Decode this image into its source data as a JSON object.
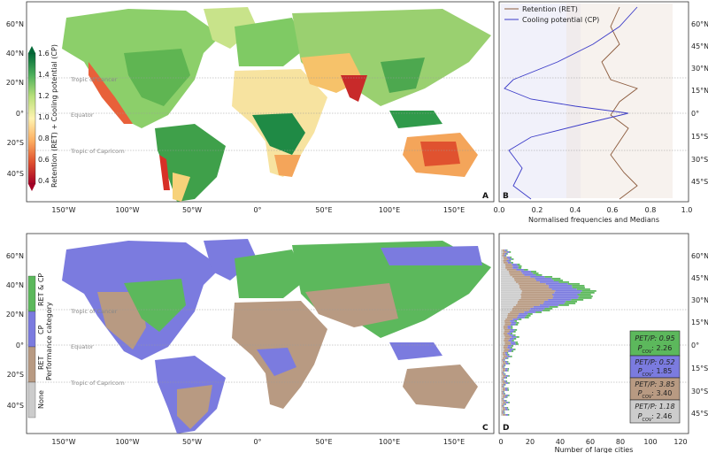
{
  "panels": {
    "a": {
      "letter": "A"
    },
    "b": {
      "letter": "B"
    },
    "c": {
      "letter": "C"
    },
    "d": {
      "letter": "D"
    }
  },
  "lat_ticks_left": [
    "60°N",
    "40°N",
    "20°N",
    "0°",
    "20°S",
    "40°S"
  ],
  "lon_ticks": [
    "150°W",
    "100°W",
    "50°W",
    "0°",
    "50°E",
    "100°E",
    "150°E"
  ],
  "lat_ticks_right": [
    "60°N",
    "45°N",
    "30°N",
    "15°N",
    "0°",
    "15°S",
    "30°S",
    "45°S"
  ],
  "ref_lines": {
    "cancer": "Tropic of Cancer",
    "equator": "Equator",
    "capricorn": "Tropic of Capricorn"
  },
  "colorbar_a": {
    "label": "Retention (RET) + Cooling potential (CP)",
    "ticks": [
      "1.6",
      "1.4",
      "1.2",
      "1.0",
      "0.8",
      "0.6",
      "0.4"
    ]
  },
  "panel_b": {
    "legend": [
      "Retention (RET)",
      "Cooling potential (CP)"
    ],
    "xlabel": "Normalised frequencies and Medians",
    "xticks": [
      "0.0",
      "0.2",
      "0.4",
      "0.6",
      "0.8",
      "1.0"
    ],
    "colors": {
      "ret": "#8b5a3c",
      "cp": "#3b3bc8"
    }
  },
  "panel_c": {
    "legend_title": "Performance category",
    "legend_items": [
      "RET & CP",
      "CP",
      "RET",
      "None"
    ],
    "colors": {
      "ret_cp": "#5cb85c",
      "cp": "#7b7bdf",
      "ret": "#b89a82",
      "none": "#cccccc",
      "ocean": "#ffffff"
    }
  },
  "panel_d": {
    "xlabel": "Number of large cities",
    "xticks": [
      "0",
      "20",
      "40",
      "60",
      "80",
      "100",
      "120"
    ],
    "boxes": [
      {
        "pet": "PET/P: 0.95",
        "pcov": "P",
        "pcov_sub": "COV",
        "pcov_val": ": 2.26",
        "color": "#5cb85c"
      },
      {
        "pet": "PET/P: 0.52",
        "pcov": "P",
        "pcov_sub": "COV",
        "pcov_val": ": 1.85",
        "color": "#7b7bdf"
      },
      {
        "pet": "PET/P: 3.85",
        "pcov": "P",
        "pcov_sub": "COV",
        "pcov_val": ": 3.40",
        "color": "#b89a82"
      },
      {
        "pet": "PET/P: 1.18",
        "pcov": "P",
        "pcov_sub": "COV",
        "pcov_val": ": 2.46",
        "color": "#cccccc"
      }
    ]
  }
}
